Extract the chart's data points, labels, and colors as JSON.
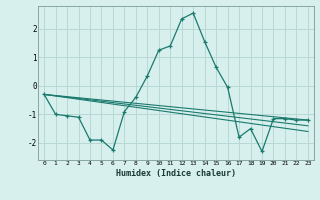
{
  "title": "",
  "xlabel": "Humidex (Indice chaleur)",
  "ylabel": "",
  "background_color": "#d8f0ed",
  "grid_color": "#b8d8d4",
  "line_color": "#1a7a6e",
  "xlim": [
    -0.5,
    23.5
  ],
  "ylim": [
    -2.6,
    2.8
  ],
  "yticks": [
    -2,
    -1,
    0,
    1,
    2
  ],
  "xticks": [
    0,
    1,
    2,
    3,
    4,
    5,
    6,
    7,
    8,
    9,
    10,
    11,
    12,
    13,
    14,
    15,
    16,
    17,
    18,
    19,
    20,
    21,
    22,
    23
  ],
  "series": [
    {
      "x": [
        0,
        1,
        2,
        3,
        4,
        5,
        6,
        7,
        8,
        9,
        10,
        11,
        12,
        13,
        14,
        15,
        16,
        17,
        18,
        19,
        20,
        21,
        22,
        23
      ],
      "y": [
        -0.3,
        -1.0,
        -1.05,
        -1.1,
        -1.9,
        -1.9,
        -2.25,
        -0.9,
        -0.4,
        0.35,
        1.25,
        1.4,
        2.35,
        2.55,
        1.55,
        0.65,
        -0.05,
        -1.8,
        -1.5,
        -2.3,
        -1.15,
        -1.15,
        -1.2,
        -1.2
      ],
      "marker": "+"
    },
    {
      "x": [
        0,
        23
      ],
      "y": [
        -0.3,
        -1.2
      ],
      "marker": null
    },
    {
      "x": [
        0,
        23
      ],
      "y": [
        -0.3,
        -1.4
      ],
      "marker": null
    },
    {
      "x": [
        0,
        23
      ],
      "y": [
        -0.3,
        -1.6
      ],
      "marker": null
    }
  ]
}
